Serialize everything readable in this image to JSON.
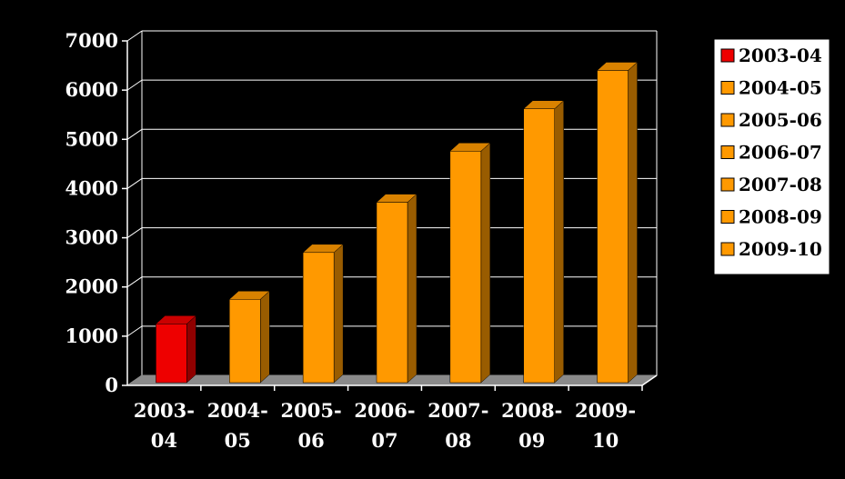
{
  "chart_data": {
    "type": "bar",
    "title": "",
    "xlabel": "",
    "ylabel": "",
    "categories": [
      "2003-04",
      "2004-05",
      "2005-06",
      "2006-07",
      "2007-08",
      "2008-09",
      "2009-10"
    ],
    "category_labels": [
      [
        "2003-",
        "04"
      ],
      [
        "2004-",
        "05"
      ],
      [
        "2005-",
        "06"
      ],
      [
        "2006-",
        "07"
      ],
      [
        "2007-",
        "08"
      ],
      [
        "2008-",
        "09"
      ],
      [
        "2009-",
        "10"
      ]
    ],
    "values": [
      1250,
      1750,
      2700,
      3720,
      4760,
      5620,
      6400
    ],
    "ylim": [
      0,
      7000
    ],
    "yticks": [
      0,
      1000,
      2000,
      3000,
      4000,
      5000,
      6000,
      7000
    ],
    "grid": true,
    "three_d": true,
    "legend_position": "right",
    "colors": [
      "#ee0000",
      "#ff9900",
      "#ff9900",
      "#ff9900",
      "#ff9900",
      "#ff9900",
      "#ff9900"
    ],
    "background": "#000000",
    "plot_background": "#000000",
    "legend_background": "#ffffff"
  }
}
